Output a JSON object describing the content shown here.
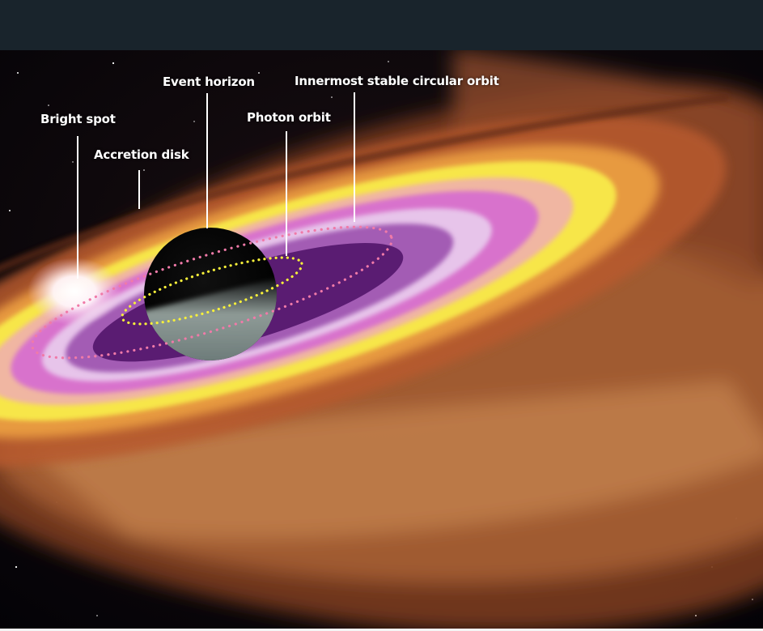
{
  "labels": {
    "bright_spot": "Bright spot",
    "accretion_disk": "Accretion disk",
    "event_horizon": "Event horizon",
    "photon_orbit": "Photon orbit",
    "innermost_stable_circular_orbit": "Innermost stable circular orbit"
  },
  "colors": {
    "header_bar": "#19242c",
    "label_text": "#ffffff",
    "leader_line": "#ffffff",
    "photon_orbit_dots": "#f7f03a",
    "isco_dots": "#f07aa8",
    "event_horizon": "#050505",
    "disk_inner": "#5a1c72",
    "disk_pink": "#d872cc",
    "disk_yellow": "#f7e64a",
    "disk_outer": "#c9723c",
    "space": "#050308"
  }
}
